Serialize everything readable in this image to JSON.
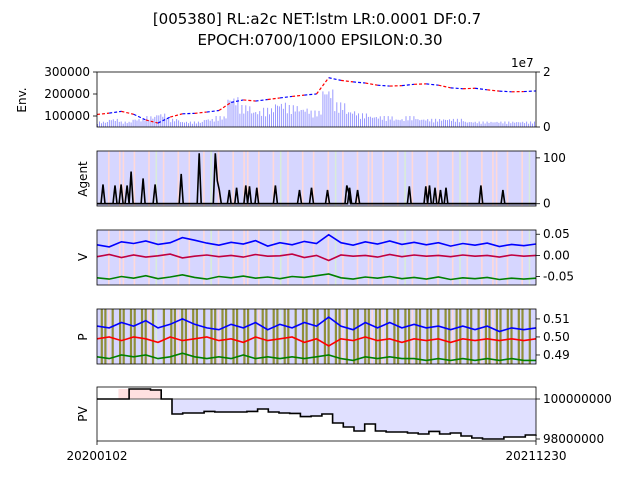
{
  "title_line1": "[005380] RL:a2c NET:lstm LR:0.0001 DF:0.7",
  "title_line2": "EPOCH:0700/1000 EPSILON:0.30",
  "colors": {
    "price_red": "#ff0000",
    "price_blue": "#0000ff",
    "volume": "#9a9aff",
    "buy_band": "#d6d6ff",
    "sell_band": "#ffd9d9",
    "hold_band": "#d9ecd9",
    "explore": "#8f8f3a",
    "v_buy": "#0000ff",
    "v_sell": "#c00040",
    "p_sell": "#ff0000",
    "hold_line": "#008000",
    "pv_line": "#000000",
    "pv_loss_fill": "#e0e0ff",
    "pv_gain_fill": "#ffe0e0"
  },
  "chart_data": [
    {
      "type": "line",
      "panel": "env",
      "ylabel": "Env.",
      "ylim": [
        50000,
        300000
      ],
      "yticks": [
        "100000",
        "200000",
        "300000"
      ],
      "secondary_axis": {
        "ylim": [
          0,
          2
        ],
        "ticks": [
          "0",
          "2"
        ],
        "offset_text": "1e7"
      },
      "series": [
        {
          "values": [
            107000,
            113000,
            121000,
            108000,
            82000,
            68000,
            95000,
            110000,
            112000,
            118000,
            125000,
            162000,
            173000,
            168000,
            175000,
            182000,
            189000,
            195000,
            200000,
            274000,
            262000,
            255000,
            250000,
            240000,
            236000,
            238000,
            244000,
            246000,
            240000,
            228000,
            224000,
            226000,
            219000,
            213000,
            210000,
            211000,
            214000
          ]
        }
      ],
      "volume_x1e7": [
        0.2,
        0.3,
        0.2,
        0.3,
        0.4,
        0.5,
        0.3,
        0.2,
        0.2,
        0.3,
        0.4,
        1.1,
        0.8,
        0.6,
        0.7,
        0.9,
        0.8,
        0.7,
        0.6,
        1.4,
        0.9,
        0.6,
        0.5,
        0.4,
        0.4,
        0.3,
        0.4,
        0.3,
        0.3,
        0.3,
        0.3,
        0.2,
        0.2,
        0.2,
        0.2,
        0.2,
        0.2
      ]
    },
    {
      "type": "line",
      "panel": "agent",
      "ylabel": "Agent",
      "ylim": [
        -5,
        115
      ],
      "yticks": [
        "0",
        "100"
      ],
      "series": [
        {
          "values": [
            0,
            0,
            0,
            42,
            0,
            0,
            0,
            0,
            0,
            40,
            0,
            0,
            42,
            0,
            0,
            40,
            0,
            70,
            0,
            0,
            0,
            0,
            0,
            55,
            0,
            0,
            0,
            0,
            0,
            42,
            0,
            0,
            0,
            0,
            0,
            0,
            0,
            0,
            0,
            0,
            0,
            0,
            65,
            0,
            0,
            0,
            0,
            0,
            0,
            0,
            0,
            110,
            0,
            0,
            0,
            0,
            0,
            0,
            0,
            110,
            50,
            30,
            0,
            0,
            0,
            0,
            0,
            0,
            0,
            0,
            0,
            0,
            0,
            0,
            0,
            0,
            0,
            0,
            0,
            0,
            0,
            0,
            0,
            0,
            0,
            0,
            0,
            0,
            0,
            40,
            0,
            0,
            0,
            0,
            0,
            0,
            0,
            0,
            0,
            0,
            0,
            30,
            0,
            0,
            0,
            0,
            0,
            35,
            0,
            0,
            0,
            0,
            0,
            0,
            0,
            30,
            0,
            0,
            0,
            0,
            0,
            0,
            0,
            0,
            0,
            0,
            35,
            0,
            0,
            0,
            30,
            0,
            0,
            0,
            0,
            0,
            0,
            0,
            0,
            0,
            0,
            0,
            0,
            0,
            0,
            0,
            0,
            0,
            0,
            0,
            0,
            0,
            0,
            0,
            0,
            0,
            0,
            0,
            0,
            0,
            0,
            0,
            0,
            0,
            0,
            0,
            0,
            0,
            0,
            0,
            0,
            0,
            0,
            0,
            0,
            0,
            0,
            0,
            0,
            0,
            0,
            0,
            0,
            0,
            0,
            0,
            0,
            0,
            0,
            0,
            0,
            0,
            0,
            0,
            0,
            0,
            0,
            0,
            0,
            0,
            0,
            0,
            0,
            0,
            0,
            0,
            0,
            0,
            0,
            0,
            0,
            0,
            0,
            0,
            0,
            0,
            0,
            0,
            0,
            0
          ]
        },
        {
          "values": [
            0,
            0,
            0,
            0,
            0,
            0,
            0,
            0,
            0,
            0,
            0,
            0,
            0,
            0,
            0,
            0,
            0,
            0,
            0,
            0,
            0,
            0,
            0,
            0,
            0,
            0,
            0,
            0,
            0,
            0,
            0,
            0,
            0,
            0,
            0,
            0,
            0,
            0,
            0,
            0,
            0,
            0,
            0,
            0,
            0,
            0,
            0,
            0,
            0,
            0,
            0,
            0,
            0,
            0,
            0,
            0,
            0,
            0,
            0,
            0,
            0,
            0,
            0,
            0,
            0,
            0,
            0,
            0,
            0,
            0,
            0,
            0,
            30,
            0,
            0,
            0,
            35,
            0,
            0,
            0,
            0,
            40,
            0,
            38,
            0,
            0,
            0,
            35,
            0,
            0,
            0,
            0,
            0,
            0,
            0,
            0,
            0,
            0,
            0,
            0,
            0,
            0,
            0,
            0,
            0,
            0,
            0,
            0,
            0,
            0,
            0,
            0,
            0,
            0,
            0,
            0,
            0,
            0,
            0,
            0,
            0,
            0,
            0,
            0,
            0,
            0,
            0,
            0,
            0,
            0,
            0,
            0,
            0,
            0,
            0,
            0,
            40,
            25,
            0,
            0,
            0,
            0,
            0,
            0,
            0,
            0,
            0,
            0,
            0,
            0,
            0,
            0,
            0,
            0,
            0,
            0,
            0,
            0,
            0,
            0,
            0,
            0,
            0,
            0,
            0,
            0,
            0,
            0,
            0,
            0,
            38,
            0,
            0,
            0,
            0,
            0,
            0,
            0,
            0,
            38,
            0,
            40,
            0,
            0,
            35,
            0,
            0,
            30,
            0,
            0,
            35,
            0,
            0,
            0,
            0,
            0,
            0,
            0,
            0,
            0,
            0,
            0,
            0,
            0,
            0,
            0,
            0,
            0,
            0,
            40,
            0,
            0,
            0,
            0,
            0,
            0,
            0,
            0,
            0,
            0,
            0,
            30,
            0,
            0,
            0,
            0,
            0,
            0,
            0,
            0,
            0,
            0,
            0,
            0,
            0,
            0,
            0,
            0,
            0,
            0
          ]
        }
      ]
    },
    {
      "type": "line",
      "panel": "value",
      "ylabel": "V",
      "ylim": [
        -0.07,
        0.06
      ],
      "yticks": [
        "0.05",
        "0.00",
        "-0.05"
      ],
      "series": [
        {
          "values": [
            0.025,
            0.02,
            0.032,
            0.028,
            0.034,
            0.026,
            0.03,
            0.042,
            0.036,
            0.029,
            0.024,
            0.031,
            0.027,
            0.035,
            0.022,
            0.03,
            0.025,
            0.033,
            0.028,
            0.049,
            0.03,
            0.024,
            0.032,
            0.027,
            0.034,
            0.026,
            0.031,
            0.025,
            0.03,
            0.022,
            0.028,
            0.024,
            0.029,
            0.021,
            0.026,
            0.023,
            0.027
          ]
        },
        {
          "values": [
            -0.003,
            0.002,
            -0.005,
            0.001,
            -0.004,
            -0.001,
            0.003,
            -0.006,
            -0.002,
            0.001,
            -0.003,
            0.0,
            -0.004,
            0.002,
            -0.002,
            -0.001,
            0.003,
            -0.005,
            0.0,
            -0.012,
            0.001,
            -0.002,
            0.0,
            -0.004,
            0.002,
            -0.003,
            0.001,
            -0.002,
            0.0,
            -0.003,
            0.001,
            -0.002,
            0.0,
            -0.004,
            0.001,
            -0.002,
            0.0
          ]
        },
        {
          "values": [
            -0.053,
            -0.056,
            -0.05,
            -0.054,
            -0.048,
            -0.055,
            -0.051,
            -0.046,
            -0.052,
            -0.056,
            -0.05,
            -0.053,
            -0.049,
            -0.054,
            -0.051,
            -0.055,
            -0.05,
            -0.052,
            -0.048,
            -0.044,
            -0.053,
            -0.056,
            -0.051,
            -0.054,
            -0.05,
            -0.055,
            -0.052,
            -0.056,
            -0.051,
            -0.057,
            -0.053,
            -0.055,
            -0.052,
            -0.057,
            -0.054,
            -0.056,
            -0.054
          ]
        }
      ]
    },
    {
      "type": "line",
      "panel": "policy",
      "ylabel": "P",
      "ylim": [
        0.485,
        0.5155
      ],
      "yticks": [
        "0.51",
        "0.50",
        "0.49"
      ],
      "series": [
        {
          "values": [
            0.506,
            0.505,
            0.508,
            0.506,
            0.509,
            0.505,
            0.507,
            0.51,
            0.507,
            0.505,
            0.504,
            0.507,
            0.505,
            0.508,
            0.504,
            0.507,
            0.505,
            0.508,
            0.506,
            0.511,
            0.506,
            0.504,
            0.508,
            0.505,
            0.508,
            0.505,
            0.507,
            0.505,
            0.506,
            0.504,
            0.506,
            0.504,
            0.506,
            0.503,
            0.505,
            0.504,
            0.505
          ]
        },
        {
          "values": [
            0.499,
            0.5,
            0.498,
            0.5,
            0.499,
            0.497,
            0.5,
            0.498,
            0.499,
            0.5,
            0.498,
            0.499,
            0.497,
            0.5,
            0.498,
            0.499,
            0.5,
            0.497,
            0.499,
            0.495,
            0.499,
            0.498,
            0.5,
            0.498,
            0.499,
            0.497,
            0.499,
            0.498,
            0.499,
            0.497,
            0.499,
            0.498,
            0.499,
            0.498,
            0.499,
            0.498,
            0.499
          ]
        },
        {
          "values": [
            0.489,
            0.488,
            0.49,
            0.489,
            0.49,
            0.488,
            0.489,
            0.491,
            0.489,
            0.488,
            0.489,
            0.488,
            0.49,
            0.488,
            0.489,
            0.488,
            0.489,
            0.488,
            0.489,
            0.49,
            0.488,
            0.487,
            0.489,
            0.488,
            0.489,
            0.488,
            0.488,
            0.487,
            0.488,
            0.487,
            0.488,
            0.487,
            0.488,
            0.487,
            0.488,
            0.487,
            0.487
          ]
        }
      ]
    },
    {
      "type": "line",
      "panel": "portfolio",
      "ylabel": "PV",
      "ylim": [
        97900000,
        100600000
      ],
      "yticks": [
        "100000000",
        "98000000"
      ],
      "baseline": 100000000,
      "x_tick_labels": [
        "20200102",
        "20211230"
      ],
      "series": [
        {
          "values": [
            100000000,
            100000000,
            100000000,
            100500000,
            100500000,
            100450000,
            100000000,
            99250000,
            99300000,
            99300000,
            99380000,
            99350000,
            99350000,
            99350000,
            99380000,
            99500000,
            99350000,
            99300000,
            99280000,
            99120000,
            99150000,
            99250000,
            98800000,
            98600000,
            98400000,
            98750000,
            98400000,
            98350000,
            98350000,
            98300000,
            98250000,
            98380000,
            98250000,
            98300000,
            98150000,
            98050000,
            98000000,
            98000000,
            98100000,
            98100000,
            98200000,
            98220000
          ]
        }
      ]
    }
  ]
}
